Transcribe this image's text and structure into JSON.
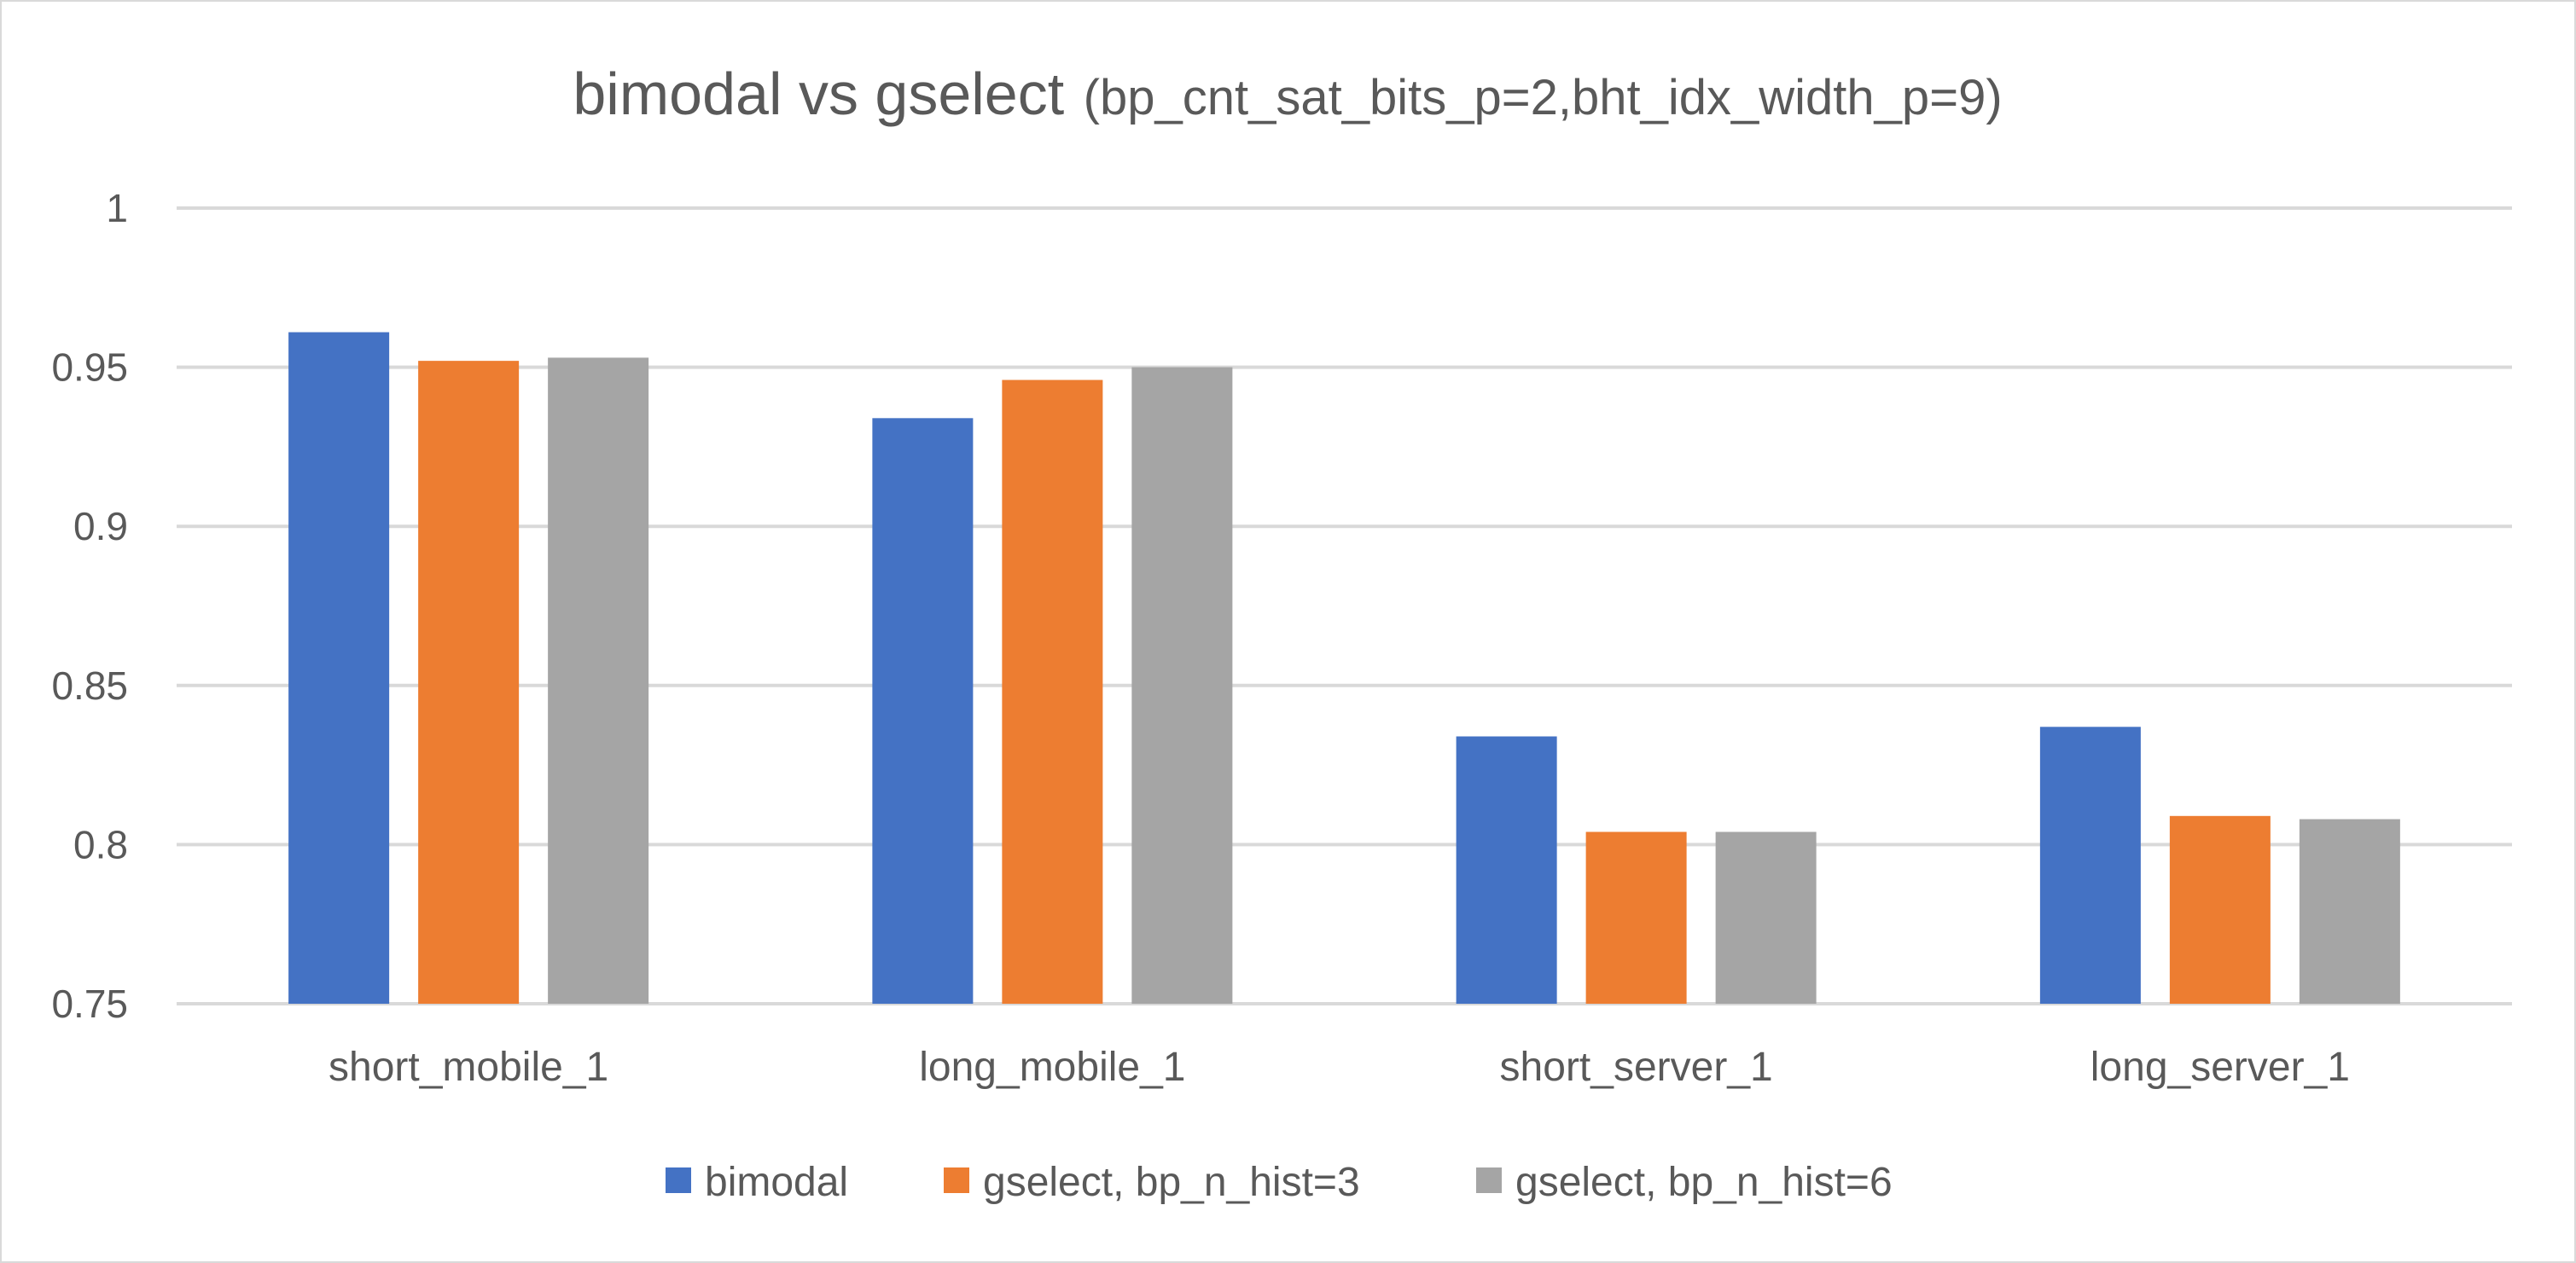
{
  "chart_data": {
    "type": "bar",
    "title": "bimodal vs gselect",
    "subtitle": "(bp_cnt_sat_bits_p=2,bht_idx_width_p=9)",
    "xlabel": "",
    "ylabel": "",
    "categories": [
      "short_mobile_1",
      "long_mobile_1",
      "short_server_1",
      "long_server_1"
    ],
    "series": [
      {
        "name": "bimodal",
        "color": "#4472c4",
        "values": [
          0.961,
          0.934,
          0.834,
          0.837
        ]
      },
      {
        "name": "gselect, bp_n_hist=3",
        "color": "#ed7d31",
        "values": [
          0.952,
          0.946,
          0.804,
          0.809
        ]
      },
      {
        "name": "gselect, bp_n_hist=6",
        "color": "#a5a5a5",
        "values": [
          0.953,
          0.95,
          0.804,
          0.808
        ]
      }
    ],
    "ylim": [
      0.75,
      1
    ],
    "yticks": [
      "0.75",
      "0.8",
      "0.85",
      "0.9",
      "0.95",
      "1"
    ],
    "grid": true,
    "legend_position": "bottom"
  }
}
